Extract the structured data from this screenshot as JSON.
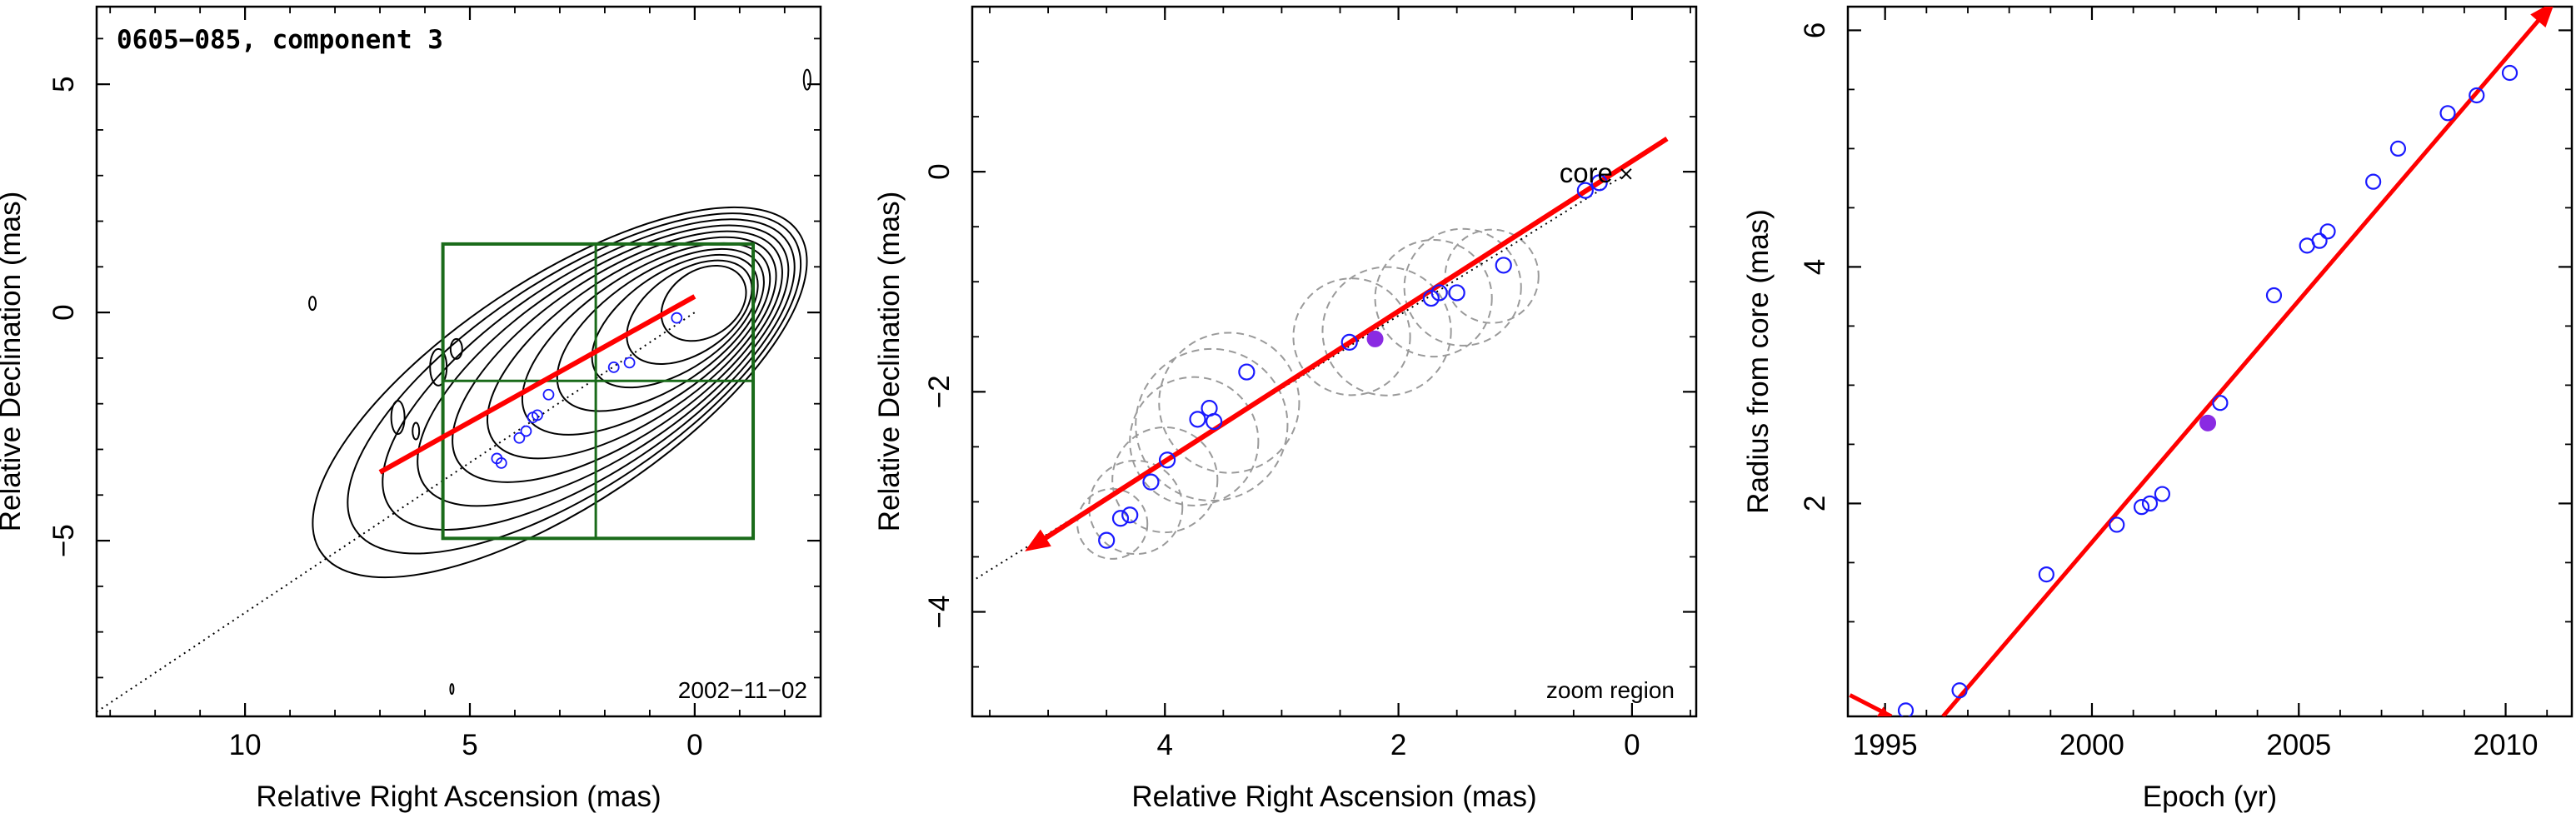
{
  "chart_data": [
    {
      "type": "contour",
      "title": "0605−085, component 3",
      "date_label": "2002−11−02",
      "xlabel": "Relative Right Ascension (mas)",
      "ylabel": "Relative Declination (mas)",
      "xlim": [
        13.3,
        -2.8
      ],
      "ylim": [
        -8.85,
        6.7
      ],
      "xticks": [
        10,
        5,
        0
      ],
      "xtick_labels": [
        "10",
        "5",
        "0"
      ],
      "yticks": [
        5,
        0,
        -5
      ],
      "ytick_labels": [
        "5",
        "0",
        "−5"
      ],
      "zoom_region": {
        "x": [
          5.6,
          -1.3
        ],
        "y": [
          -4.95,
          1.5
        ],
        "divider_x": 2.2,
        "divider_y": -1.5,
        "color": "#1a6b1a"
      },
      "trajectory_line": {
        "from": [
          13.3,
          -8.75
        ],
        "to": [
          0,
          0.0
        ]
      },
      "fitted_direction": {
        "from": [
          0.0,
          0.35
        ],
        "to": [
          7.0,
          -3.5
        ],
        "color": "#ff0000"
      },
      "component_positions": [
        [
          4.3,
          -3.3
        ],
        [
          4.4,
          -3.2
        ],
        [
          3.9,
          -2.75
        ],
        [
          3.75,
          -2.6
        ],
        [
          3.6,
          -2.3
        ],
        [
          3.5,
          -2.25
        ],
        [
          3.25,
          -1.8
        ],
        [
          1.8,
          -1.2
        ],
        [
          1.45,
          -1.1
        ],
        [
          0.4,
          -0.12
        ]
      ],
      "contour_levels": 11
    },
    {
      "type": "scatter",
      "title": "",
      "xlabel": "Relative Right Ascension (mas)",
      "ylabel": "Relative Declination (mas)",
      "xlim": [
        5.65,
        -0.55
      ],
      "ylim": [
        -4.95,
        1.5
      ],
      "xticks": [
        4,
        2,
        0
      ],
      "xtick_labels": [
        "4",
        "2",
        "0"
      ],
      "yticks": [
        0,
        -2,
        -4
      ],
      "ytick_labels": [
        "0",
        "−2",
        "−4"
      ],
      "core_label": "core",
      "core_position": [
        0.05,
        -0.02
      ],
      "corner_label": "zoom region",
      "trajectory_line": {
        "from": [
          0.05,
          -0.02
        ],
        "to": [
          5.65,
          -3.72
        ]
      },
      "fitted_direction": {
        "from": [
          -0.3,
          0.3
        ],
        "to": [
          5.2,
          -3.45
        ],
        "color": "#ff0000"
      },
      "series": [
        {
          "style": "open-circle",
          "color": "#1a1aff",
          "x": [
            4.5,
            4.38,
            4.3,
            4.12,
            3.98,
            3.72,
            3.62,
            3.58,
            3.3,
            2.42,
            1.72,
            1.65,
            1.5,
            1.1,
            0.4,
            0.28
          ],
          "y": [
            -3.35,
            -3.15,
            -3.12,
            -2.82,
            -2.62,
            -2.25,
            -2.15,
            -2.27,
            -1.82,
            -1.55,
            -1.15,
            -1.1,
            -1.1,
            -0.85,
            -0.17,
            -0.1
          ]
        },
        {
          "style": "filled-circle",
          "color": "#8a2be2",
          "x": [
            2.2
          ],
          "y": [
            -1.52
          ]
        }
      ],
      "uncertainty_circles": [
        {
          "x": 4.45,
          "y": -3.2,
          "r": 0.3
        },
        {
          "x": 4.25,
          "y": -3.05,
          "r": 0.4
        },
        {
          "x": 4.0,
          "y": -2.8,
          "r": 0.45
        },
        {
          "x": 3.75,
          "y": -2.45,
          "r": 0.55
        },
        {
          "x": 3.6,
          "y": -2.3,
          "r": 0.65
        },
        {
          "x": 3.45,
          "y": -2.1,
          "r": 0.6
        },
        {
          "x": 2.4,
          "y": -1.5,
          "r": 0.5
        },
        {
          "x": 2.1,
          "y": -1.45,
          "r": 0.55
        },
        {
          "x": 1.7,
          "y": -1.15,
          "r": 0.5
        },
        {
          "x": 1.45,
          "y": -1.05,
          "r": 0.5
        },
        {
          "x": 1.2,
          "y": -0.95,
          "r": 0.4
        }
      ]
    },
    {
      "type": "scatter",
      "title": "",
      "xlabel": "Epoch (yr)",
      "ylabel": "Radius from core (mas)",
      "xlim": [
        1994.1,
        2011.6
      ],
      "ylim": [
        0.2,
        6.2
      ],
      "xticks": [
        1995,
        2000,
        2005,
        2010
      ],
      "xtick_labels": [
        "1995",
        "2000",
        "2005",
        "2010"
      ],
      "yticks": [
        2,
        4,
        6
      ],
      "ytick_labels": [
        "2",
        "4",
        "6"
      ],
      "fitted_line": {
        "x": [
          1996.4,
          2011.2
        ],
        "y": [
          0.2,
          6.25
        ],
        "color": "#ff0000"
      },
      "lower_arrow": {
        "from": [
          1994.15,
          0.38
        ],
        "to": [
          1995.15,
          0.2
        ]
      },
      "series": [
        {
          "style": "open-circle",
          "color": "#1a1aff",
          "x": [
            1995.5,
            1996.8,
            1998.9,
            2000.6,
            2001.2,
            2001.4,
            2001.7,
            2003.1,
            2004.4,
            2005.2,
            2005.5,
            2005.7,
            2006.8,
            2007.4,
            2008.6,
            2009.3,
            2010.1
          ],
          "y": [
            0.25,
            0.42,
            1.4,
            1.82,
            1.97,
            2.0,
            2.08,
            2.85,
            3.76,
            4.18,
            4.22,
            4.3,
            4.72,
            5.0,
            5.3,
            5.45,
            5.64
          ]
        },
        {
          "style": "filled-circle",
          "color": "#8a2be2",
          "x": [
            2002.8
          ],
          "y": [
            2.68
          ]
        }
      ]
    }
  ]
}
